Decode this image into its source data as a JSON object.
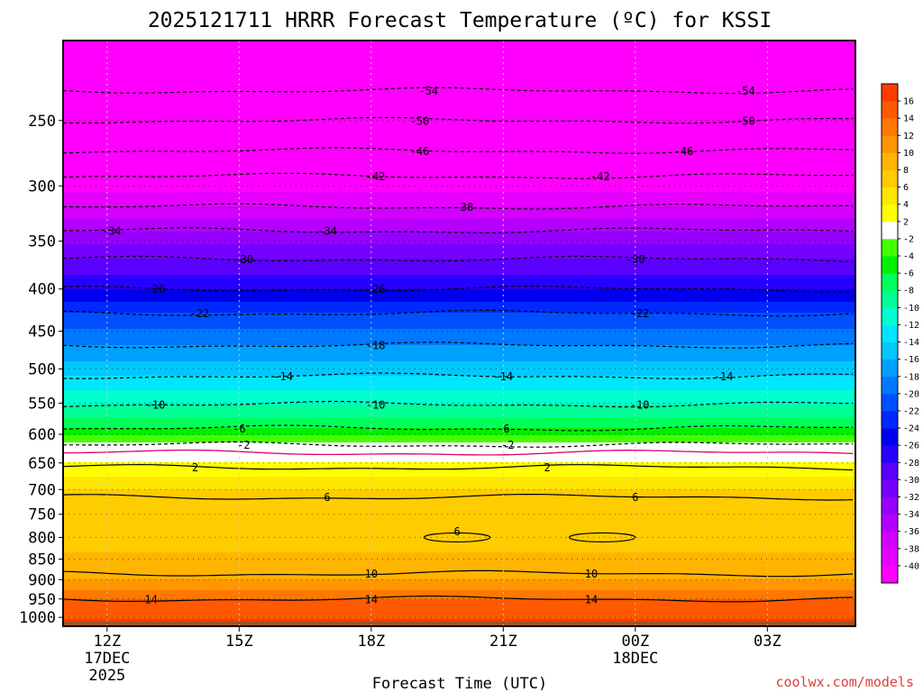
{
  "chart_data": {
    "type": "heatmap",
    "title": "2025121711 HRRR Forecast Temperature (ºC) for KSSI",
    "xlabel": "Forecast Time (UTC)",
    "ylabel": "",
    "credit": "coolwx.com/models",
    "x_ticks": [
      {
        "hour": 0,
        "lines": [
          "12Z",
          "17DEC",
          "2025"
        ]
      },
      {
        "hour": 3,
        "lines": [
          "15Z"
        ]
      },
      {
        "hour": 6,
        "lines": [
          "18Z"
        ]
      },
      {
        "hour": 9,
        "lines": [
          "21Z"
        ]
      },
      {
        "hour": 12,
        "lines": [
          "00Z",
          "18DEC"
        ]
      },
      {
        "hour": 15,
        "lines": [
          "03Z"
        ]
      }
    ],
    "xlim_hours": [
      -1,
      17
    ],
    "y_ticks": [
      250,
      300,
      350,
      400,
      450,
      500,
      550,
      600,
      650,
      700,
      750,
      800,
      850,
      900,
      950,
      1000
    ],
    "ylim_hpa": [
      1025,
      200
    ],
    "y_scale": "log-pressure",
    "grid": true,
    "colorbar": {
      "levels": [
        -40,
        -38,
        -36,
        -34,
        -32,
        -30,
        -28,
        -26,
        -24,
        -22,
        -20,
        -18,
        -16,
        -14,
        -12,
        -10,
        -8,
        -6,
        -4,
        -2,
        2,
        4,
        6,
        8,
        10,
        12,
        14,
        16
      ],
      "band_colors": [
        "#ff00ff",
        "#e800ff",
        "#d200ff",
        "#b400ff",
        "#9600ff",
        "#7800ff",
        "#5a00ff",
        "#2800ff",
        "#0000f0",
        "#0028ff",
        "#0050ff",
        "#0078ff",
        "#00a0ff",
        "#00c8ff",
        "#00e6ff",
        "#00ffd2",
        "#00ff96",
        "#00ff5a",
        "#00f000",
        "#44ff00",
        "#ffffff",
        "#ffff00",
        "#ffe600",
        "#ffcc00",
        "#ffb400",
        "#ff9600",
        "#ff7800",
        "#ff5a00",
        "#ff3c00"
      ]
    },
    "temperature_profile": [
      {
        "p": 200,
        "t": -56
      },
      {
        "p": 230,
        "t": -54
      },
      {
        "p": 250,
        "t": -50
      },
      {
        "p": 272,
        "t": -46
      },
      {
        "p": 292,
        "t": -42
      },
      {
        "p": 318,
        "t": -38
      },
      {
        "p": 340,
        "t": -34
      },
      {
        "p": 368,
        "t": -30
      },
      {
        "p": 400,
        "t": -26
      },
      {
        "p": 428,
        "t": -22
      },
      {
        "p": 468,
        "t": -18
      },
      {
        "p": 510,
        "t": -14
      },
      {
        "p": 552,
        "t": -10
      },
      {
        "p": 590,
        "t": -6
      },
      {
        "p": 615,
        "t": -2
      },
      {
        "p": 632,
        "t": 0
      },
      {
        "p": 650,
        "t": 2
      },
      {
        "p": 700,
        "t": 6
      },
      {
        "p": 800,
        "t": 7
      },
      {
        "p": 900,
        "t": 10
      },
      {
        "p": 950,
        "t": 14
      },
      {
        "p": 1000,
        "t": 15
      },
      {
        "p": 1010,
        "t": 17
      }
    ],
    "contours": [
      {
        "value": -54,
        "p": 230,
        "labels": [
          {
            "hour": 7.3,
            "text": "-54"
          },
          {
            "hour": 14.5,
            "text": "-54"
          }
        ]
      },
      {
        "value": -50,
        "p": 250,
        "labels": [
          {
            "hour": 7.1,
            "text": "-50"
          },
          {
            "hour": 14.5,
            "text": "-50"
          }
        ]
      },
      {
        "value": -46,
        "p": 272,
        "labels": [
          {
            "hour": 7.1,
            "text": "-46"
          },
          {
            "hour": 13.1,
            "text": "-46"
          }
        ]
      },
      {
        "value": -42,
        "p": 292,
        "labels": [
          {
            "hour": 6.1,
            "text": "-42"
          },
          {
            "hour": 11.2,
            "text": "-42"
          }
        ]
      },
      {
        "value": -38,
        "p": 318,
        "labels": [
          {
            "hour": 8.1,
            "text": "-38"
          }
        ]
      },
      {
        "value": -34,
        "p": 340,
        "labels": [
          {
            "hour": 0.1,
            "text": "-34"
          },
          {
            "hour": 5.0,
            "text": "-34"
          }
        ]
      },
      {
        "value": -30,
        "p": 368,
        "labels": [
          {
            "hour": 3.1,
            "text": "-30"
          },
          {
            "hour": 12.0,
            "text": "-30"
          }
        ]
      },
      {
        "value": -26,
        "p": 400,
        "labels": [
          {
            "hour": 1.1,
            "text": "-26"
          },
          {
            "hour": 6.1,
            "text": "-26"
          }
        ]
      },
      {
        "value": -22,
        "p": 428,
        "labels": [
          {
            "hour": 2.1,
            "text": "-22"
          },
          {
            "hour": 12.1,
            "text": "-22"
          }
        ]
      },
      {
        "value": -18,
        "p": 468,
        "labels": [
          {
            "hour": 6.1,
            "text": "-18"
          }
        ]
      },
      {
        "value": -14,
        "p": 510,
        "labels": [
          {
            "hour": 4.0,
            "text": "-14"
          },
          {
            "hour": 9.0,
            "text": "-14"
          },
          {
            "hour": 14.0,
            "text": "-14"
          }
        ]
      },
      {
        "value": -10,
        "p": 552,
        "labels": [
          {
            "hour": 1.1,
            "text": "-10"
          },
          {
            "hour": 6.1,
            "text": "-10"
          },
          {
            "hour": 12.1,
            "text": "-10"
          }
        ]
      },
      {
        "value": -6,
        "p": 590,
        "labels": [
          {
            "hour": 3.0,
            "text": "-6"
          },
          {
            "hour": 9.0,
            "text": "-6"
          }
        ]
      },
      {
        "value": -2,
        "p": 618,
        "labels": [
          {
            "hour": 3.1,
            "text": "-2"
          },
          {
            "hour": 9.1,
            "text": "-2"
          }
        ]
      },
      {
        "value": 0,
        "p": 632,
        "labels": []
      },
      {
        "value": 2,
        "p": 658,
        "labels": [
          {
            "hour": 2.0,
            "text": "2"
          },
          {
            "hour": 10.0,
            "text": "2"
          }
        ]
      },
      {
        "value": 6,
        "p": 715,
        "labels": [
          {
            "hour": 5.0,
            "text": "6"
          },
          {
            "hour": 12.0,
            "text": "6"
          }
        ]
      },
      {
        "value": 10,
        "p": 885,
        "labels": [
          {
            "hour": 6.0,
            "text": "10"
          },
          {
            "hour": 11.0,
            "text": "10"
          }
        ]
      },
      {
        "value": 14,
        "p": 950,
        "labels": [
          {
            "hour": 1.0,
            "text": "14"
          },
          {
            "hour": 6.0,
            "text": "14"
          },
          {
            "hour": 11.0,
            "text": "14"
          }
        ]
      }
    ],
    "closed_contours": [
      {
        "value": 6,
        "p": 800,
        "hour_from": 7.2,
        "hour_to": 8.7,
        "label": "6"
      },
      {
        "value": 6,
        "p": 800,
        "hour_from": 10.5,
        "hour_to": 12.0,
        "label": ""
      }
    ]
  }
}
